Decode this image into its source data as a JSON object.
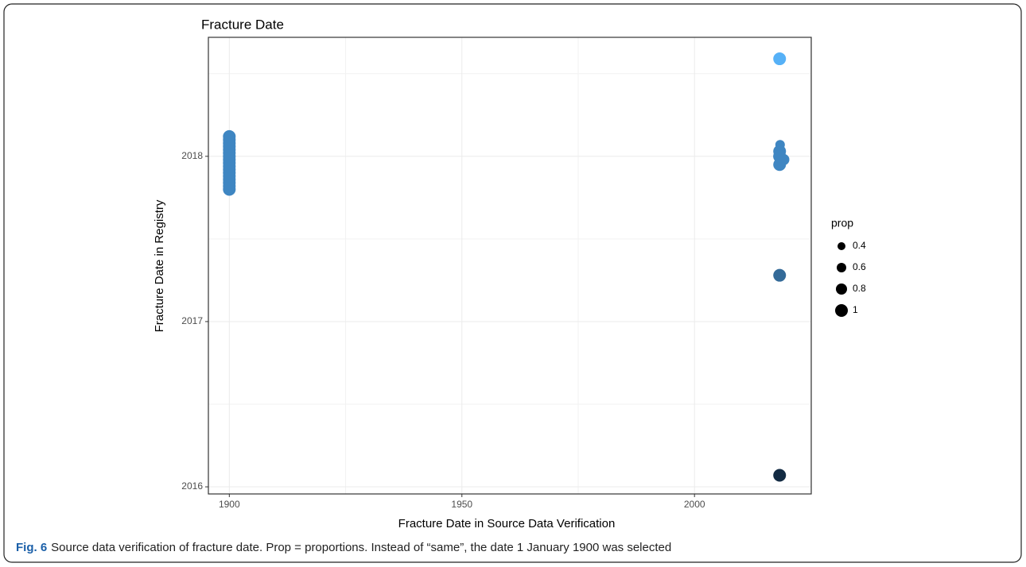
{
  "chart_data": {
    "type": "scatter",
    "title": "Fracture Date",
    "xlabel": "Fracture Date in Source Data Verification",
    "ylabel": "Fracture Date in Registry",
    "xlim": [
      1895.5,
      2025.1
    ],
    "xticks": [
      1900,
      1950,
      2000
    ],
    "ylim": [
      2015.957,
      2018.72
    ],
    "yticks": [
      2016,
      2017,
      2018
    ],
    "grid": true,
    "legend": {
      "title": "prop",
      "sizes": [
        0.4,
        0.6,
        0.8,
        1.0
      ],
      "position": "right"
    },
    "points": {
      "x": [
        1900,
        1900,
        1900,
        1900,
        1900,
        1900,
        1900,
        1900,
        1900,
        1900,
        1900,
        1900,
        1900,
        1900,
        1900,
        1900,
        1900,
        2018.3,
        2018.4,
        2018.3,
        2018.3,
        2019.2,
        2018.3,
        2018.3,
        2018.3,
        2018.3
      ],
      "y": [
        2017.8,
        2017.82,
        2017.84,
        2017.86,
        2017.88,
        2017.9,
        2017.92,
        2017.94,
        2017.96,
        2017.98,
        2018.0,
        2018.02,
        2018.04,
        2018.06,
        2018.08,
        2018.1,
        2018.12,
        2018.59,
        2018.07,
        2018.03,
        2018.0,
        2017.98,
        2017.95,
        2017.28,
        2016.07,
        2018.0
      ],
      "sizes": [
        1.0,
        1.0,
        1.0,
        1.0,
        1.0,
        1.0,
        1.0,
        1.0,
        1.0,
        1.0,
        1.0,
        1.0,
        1.0,
        1.0,
        1.0,
        1.0,
        1.0,
        1.0,
        0.6,
        1.0,
        1.0,
        0.8,
        1.0,
        1.0,
        1.0,
        1.0
      ],
      "colors": [
        "#3f86c2",
        "#3f86c2",
        "#3f86c2",
        "#3f86c2",
        "#3f86c2",
        "#3f86c2",
        "#3f86c2",
        "#3f86c2",
        "#3f86c2",
        "#3f86c2",
        "#3f86c2",
        "#3f86c2",
        "#3f86c2",
        "#3f86c2",
        "#3f86c2",
        "#3f86c2",
        "#3f86c2",
        "#56b1f7",
        "#3f86c2",
        "#3f86c2",
        "#3f86c2",
        "#3f86c2",
        "#3f86c2",
        "#336a98",
        "#132b43",
        "#3f86c2"
      ]
    }
  },
  "caption": {
    "label": "Fig. 6",
    "text": "Source data verification of fracture date. Prop = proportions. Instead of “same”, the date 1 January 1900 was selected"
  }
}
